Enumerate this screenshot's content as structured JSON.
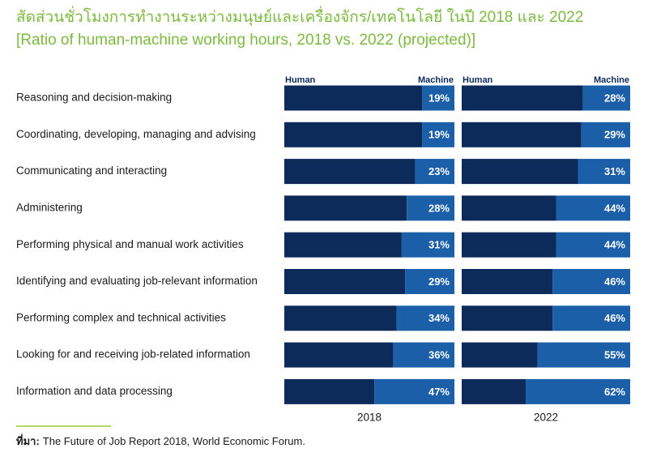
{
  "chart_data": {
    "type": "bar",
    "title": "สัดส่วนชั่วโมงการทำงานระหว่างมนุษย์และเครื่องจักร/เทคโนโลยี ในปี 2018 และ 2022",
    "subtitle": "[Ratio of human-machine working hours, 2018 vs. 2022 (projected)]",
    "categories": [
      "Reasoning and decision-making",
      "Coordinating, developing, managing and advising",
      "Communicating and interacting",
      "Administering",
      "Performing physical and manual work activities",
      "Identifying and evaluating job-relevant information",
      "Performing complex and technical activities",
      "Looking for and receiving job-related information",
      "Information and data processing"
    ],
    "panels": [
      {
        "label": "2018",
        "series": [
          {
            "name": "Human",
            "color": "#0d2b5a",
            "values": [
              81,
              81,
              77,
              72,
              69,
              71,
              66,
              64,
              53
            ]
          },
          {
            "name": "Machine",
            "color": "#1a5fa8",
            "values": [
              19,
              19,
              23,
              28,
              31,
              29,
              34,
              36,
              47
            ],
            "value_labels": [
              "19%",
              "19%",
              "23%",
              "28%",
              "31%",
              "29%",
              "34%",
              "36%",
              "47%"
            ]
          }
        ]
      },
      {
        "label": "2022",
        "series": [
          {
            "name": "Human",
            "color": "#0d2b5a",
            "values": [
              72,
              71,
              69,
              56,
              56,
              54,
              54,
              45,
              38
            ]
          },
          {
            "name": "Machine",
            "color": "#1a5fa8",
            "values": [
              28,
              29,
              31,
              44,
              44,
              46,
              46,
              55,
              62
            ],
            "value_labels": [
              "28%",
              "29%",
              "31%",
              "44%",
              "44%",
              "46%",
              "46%",
              "55%",
              "62%"
            ]
          }
        ]
      }
    ]
  },
  "source": {
    "label": "ที่มา:",
    "text": "The Future of Job Report 2018, World Economic Forum."
  }
}
